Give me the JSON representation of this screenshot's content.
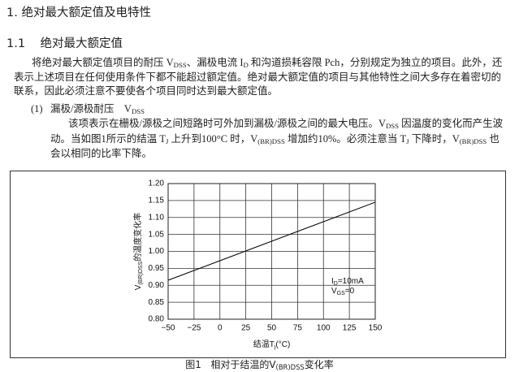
{
  "heading": "1.  绝对最大额定值及电特性",
  "section": {
    "number": "1.1",
    "title": "绝对最大额定值"
  },
  "paragraph1": [
    [
      {
        "text": "将绝对最大额定值项目的耐压 V"
      },
      {
        "sub": "DSS"
      },
      {
        "text": "、漏极电流 I"
      },
      {
        "sub": "D"
      },
      {
        "text": " 和沟道损耗容限 Pch，分别规定为独立的项目。此外，还"
      }
    ],
    [
      {
        "text": "表示上述项目在任何使用条件下都不能超过额定值。绝对最大额定值的项目与其他特性之间大多存在着密切的"
      }
    ],
    [
      {
        "text": "联系，因此必须注意不要使各个项目同时达到最大额定值。"
      }
    ]
  ],
  "item": {
    "number": "(1)",
    "title": [
      {
        "text": "漏极/源极耐压　V"
      },
      {
        "sub": "DSS"
      }
    ]
  },
  "paragraph2": [
    [
      {
        "text": "该项表示在栅极/源极之间短路时可外加到漏极/源极之间的最大电压。V"
      },
      {
        "sub": "DSS"
      },
      {
        "text": " 因温度的变化而产生波"
      }
    ],
    [
      {
        "text": "动。当如图1所示的结温 T"
      },
      {
        "sub": "J"
      },
      {
        "text": " 上升到100°C 时，V"
      },
      {
        "sub": "(BR)DSS"
      },
      {
        "text": " 增加约10%。必须注意当 T"
      },
      {
        "sub": "J"
      },
      {
        "text": " 下降时，V"
      },
      {
        "sub": "(BR)DSS"
      },
      {
        "text": " 也"
      }
    ],
    [
      {
        "text": "会以相同的比率下降。"
      }
    ]
  ],
  "chart_data": {
    "type": "line",
    "x_label": [
      {
        "text": "结温T"
      },
      {
        "sub": "j"
      },
      {
        "text": "(°C)"
      }
    ],
    "y_label": [
      {
        "text": "V"
      },
      {
        "sub": "(BR)DSS"
      },
      {
        "text": "的温度变化率"
      }
    ],
    "annotations": [
      [
        {
          "text": "I"
        },
        {
          "sub": "D"
        },
        {
          "text": "=10mA"
        }
      ],
      [
        {
          "text": "V"
        },
        {
          "sub": "GS"
        },
        {
          "text": "=0"
        }
      ]
    ],
    "x": [
      -50,
      150
    ],
    "values": [
      0.915,
      1.145
    ],
    "color": "#000000",
    "xlim": [
      -50,
      150
    ],
    "xticks": [
      {
        "value": -50,
        "label": "−50"
      },
      {
        "value": -25,
        "label": "−25"
      },
      0,
      25,
      50,
      75,
      100,
      125,
      150
    ],
    "ylim": [
      0.8,
      1.2
    ],
    "yticks": [
      {
        "value": 0.8,
        "label": "0.80"
      },
      0.85,
      {
        "value": 0.9,
        "label": "0.90"
      },
      0.95,
      {
        "value": 1.0,
        "label": "1.00"
      },
      1.05,
      {
        "value": 1.1,
        "label": "1.10"
      },
      1.15,
      {
        "value": 1.2,
        "label": "1.20"
      }
    ],
    "grid": true
  },
  "caption": {
    "number": "图1",
    "text": [
      {
        "text": "相对于结温的V"
      },
      {
        "sub": "(BR)DSS"
      },
      {
        "text": "变化率"
      }
    ]
  }
}
